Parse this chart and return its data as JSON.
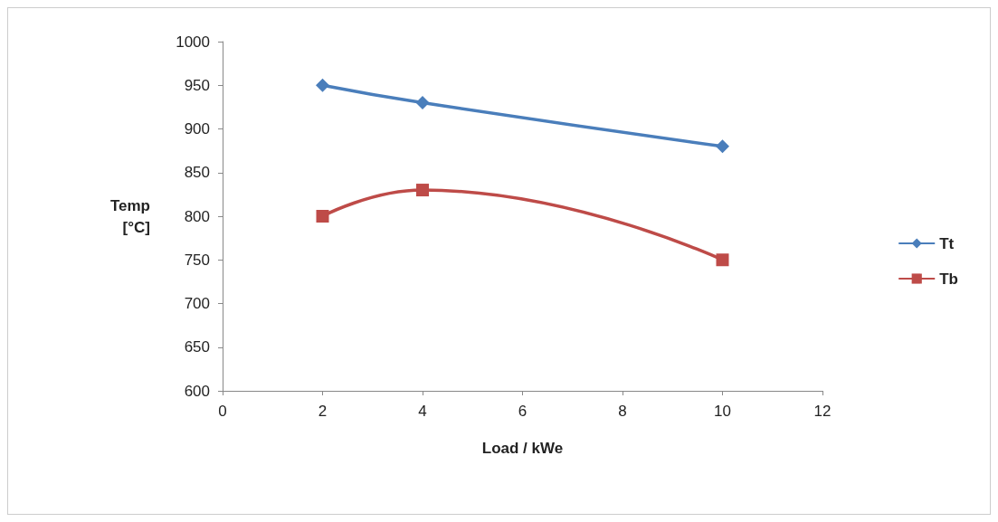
{
  "chart_data": {
    "type": "line",
    "xlabel": "Load / kWe",
    "ylabel": "Temp [°C]",
    "xlim": [
      0,
      12
    ],
    "xticks": [
      0,
      2,
      4,
      6,
      8,
      10,
      12
    ],
    "ylim": [
      600,
      1000
    ],
    "yticks": [
      600,
      650,
      700,
      750,
      800,
      850,
      900,
      950,
      1000
    ],
    "x": [
      2,
      4,
      10
    ],
    "legend": "right",
    "grid": false,
    "series": [
      {
        "name": "Tt",
        "color": "#4a7ebb",
        "marker": "diamond",
        "values": [
          950,
          930,
          880
        ]
      },
      {
        "name": "Tb",
        "color": "#be4b48",
        "marker": "square",
        "values": [
          800,
          830,
          750
        ]
      }
    ]
  }
}
